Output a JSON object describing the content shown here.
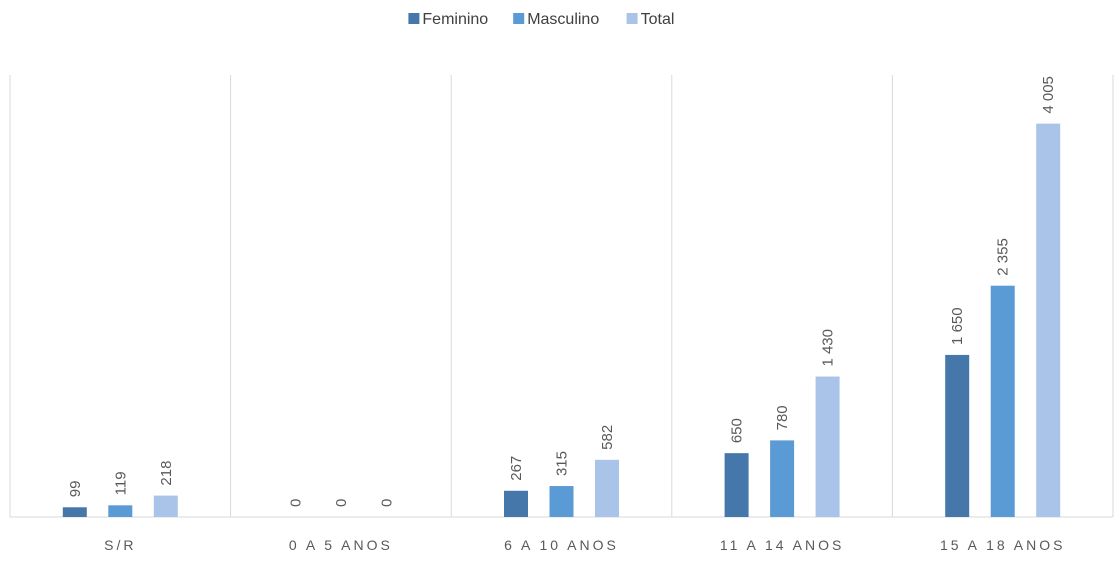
{
  "chart_data": {
    "type": "bar",
    "categories": [
      "S/R",
      "0 A 5 ANOS",
      "6 A 10 ANOS",
      "11 A 14 ANOS",
      "15 A 18 ANOS"
    ],
    "series": [
      {
        "name": "Feminino",
        "color": "#4677aa",
        "values": [
          99,
          0,
          267,
          650,
          1650
        ],
        "value_labels": [
          "99",
          "0",
          "267",
          "650",
          "1 650"
        ]
      },
      {
        "name": "Masculino",
        "color": "#5b9bd5",
        "values": [
          119,
          0,
          315,
          780,
          2355
        ],
        "value_labels": [
          "119",
          "0",
          "315",
          "780",
          "2 355"
        ]
      },
      {
        "name": "Total",
        "color": "#a9c4e8",
        "values": [
          218,
          0,
          582,
          1430,
          4005
        ],
        "value_labels": [
          "218",
          "0",
          "582",
          "1 430",
          "4 005"
        ]
      }
    ],
    "ylim": [
      0,
      4500
    ],
    "legend": "top"
  }
}
